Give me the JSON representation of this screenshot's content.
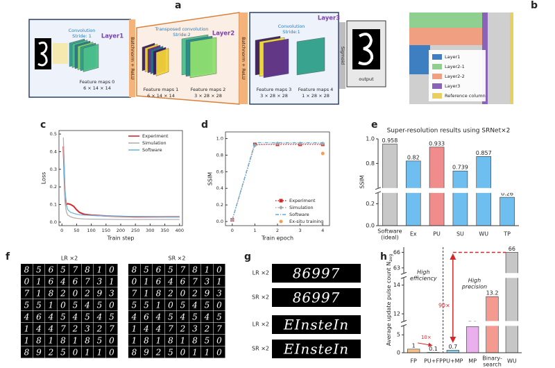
{
  "panel_labels": [
    "a",
    "b",
    "c",
    "d",
    "e",
    "f",
    "g",
    "h"
  ],
  "diagram_a": {
    "layer1": {
      "title": "Layer1",
      "op": "Convolution",
      "stride": "Stride: 1",
      "maps": [
        {
          "name": "Feature maps 0",
          "shape": "6 × 14 × 14"
        }
      ]
    },
    "norm1": "Batchnorm + ReLU",
    "layer2": {
      "title": "Layer2",
      "op": "Transposed convolution",
      "stride": "Stride:2",
      "maps": [
        {
          "name": "Feature maps 1",
          "shape": "6 × 14 × 14"
        },
        {
          "name": "Feature maps 2",
          "shape": "3 × 28 × 28"
        }
      ]
    },
    "norm2": "Batchnorm + ReLU",
    "layer3": {
      "title": "Layer3",
      "op": "Convolution",
      "stride": "Stride:1",
      "maps": [
        {
          "name": "Feature maps 3",
          "shape": "3 × 28 × 28"
        },
        {
          "name": "Feature maps 4",
          "shape": "1 × 28 × 28"
        }
      ]
    },
    "activation": "Sigmoid",
    "output": "output"
  },
  "legend_b": {
    "items": [
      {
        "name": "Layer1",
        "color": "#3d7fc0"
      },
      {
        "name": "Layer2-1",
        "color": "#8fcf8f"
      },
      {
        "name": "Layer2-2",
        "color": "#f0a080"
      },
      {
        "name": "Layer3",
        "color": "#8a62b8"
      },
      {
        "name": "Reference column",
        "color": "#e8d060"
      }
    ]
  },
  "chart_data": [
    {
      "type": "line",
      "xlabel": "Train step",
      "ylabel": "Loss",
      "legend": "upper right",
      "xlim": [
        -10,
        410
      ],
      "xticks": [
        0,
        50,
        100,
        150,
        200,
        250,
        300,
        350,
        400
      ],
      "ylim": [
        -0.02,
        0.52
      ],
      "yticks": [
        {
          "value": 0,
          "label": "0.0"
        },
        {
          "value": 0.1,
          "label": "0.1"
        },
        {
          "value": 0.2,
          "label": "0.2"
        },
        {
          "value": 0.3,
          "label": "0.3"
        },
        {
          "value": 0.4,
          "label": "0.4"
        },
        {
          "value": 0.5,
          "label": "0.5"
        }
      ],
      "x": [
        5,
        10,
        15,
        20,
        30,
        40,
        50,
        60,
        75,
        100,
        150,
        200,
        250,
        300,
        350,
        400
      ],
      "series": [
        {
          "name": "Experiment",
          "color": "#d62728",
          "dash": "solid",
          "marker": "none",
          "values": [
            0.43,
            0.16,
            0.1,
            0.105,
            0.1,
            0.09,
            0.07,
            0.055,
            0.045,
            0.04,
            0.035,
            0.032,
            0.03,
            0.03,
            0.03,
            0.03
          ]
        },
        {
          "name": "Simulation",
          "color": "#b0b0b0",
          "dash": "solid",
          "marker": "none",
          "values": [
            0.48,
            0.12,
            0.06,
            0.04,
            0.03,
            0.025,
            0.022,
            0.02,
            0.018,
            0.017,
            0.016,
            0.015,
            0.015,
            0.015,
            0.015,
            0.015
          ]
        },
        {
          "name": "Software",
          "color": "#6fb7e0",
          "dash": "solid",
          "marker": "none",
          "values": [
            0.4,
            0.2,
            0.1,
            0.07,
            0.055,
            0.05,
            0.045,
            0.042,
            0.04,
            0.038,
            0.035,
            0.033,
            0.032,
            0.031,
            0.03,
            0.03
          ]
        }
      ]
    },
    {
      "type": "line",
      "xlabel": "Train epoch",
      "ylabel": "SSIM",
      "legend": "lower right",
      "xlim": [
        -0.3,
        4.3
      ],
      "xticks": [
        0,
        1,
        2,
        3,
        4
      ],
      "ylim": [
        -0.05,
        1.08
      ],
      "yticks": [
        {
          "value": 0,
          "label": "0.0"
        },
        {
          "value": 0.2,
          "label": "0.2"
        },
        {
          "value": 0.4,
          "label": "0.4"
        },
        {
          "value": 0.6,
          "label": "0.6"
        },
        {
          "value": 0.8,
          "label": "0.8"
        },
        {
          "value": 1,
          "label": "1.0"
        }
      ],
      "x": [
        0,
        1,
        2,
        3,
        4
      ],
      "series": [
        {
          "name": "Experiment",
          "color": "#d62728",
          "dash": "dotted",
          "marker": "square",
          "values": [
            0.02,
            0.93,
            0.93,
            0.93,
            0.93
          ]
        },
        {
          "name": "Simulation",
          "color": "#a8a8a8",
          "dash": "dotted",
          "marker": "diamond",
          "values": [
            0.02,
            0.92,
            0.94,
            0.94,
            0.94
          ]
        },
        {
          "name": "Software",
          "color": "#5aaee0",
          "dash": "dashed",
          "marker": "none",
          "values": [
            0.02,
            0.95,
            0.95,
            0.95,
            0.95
          ]
        },
        {
          "name": "Ex-situ training",
          "color": "#f5a050",
          "dash": "none",
          "marker": "circle",
          "values": [
            null,
            null,
            null,
            null,
            0.82
          ]
        }
      ]
    },
    {
      "type": "broken-bar",
      "title": "Super-resolution results using SRNet×2",
      "ylabel": "SSIM",
      "categories": [
        "Software\n(ideal)",
        "Ex",
        "PU",
        "SU",
        "WU",
        "TP"
      ],
      "values": [
        0.958,
        0.82,
        0.933,
        0.739,
        0.857,
        0.26
      ],
      "colors": [
        "#c8c8c8",
        "#6ebff0",
        "#f08c8c",
        "#6ebff0",
        "#6ebff0",
        "#6ebff0"
      ],
      "ylim": [
        0,
        1.0
      ],
      "y_segments": [
        [
          0,
          0.3
        ],
        [
          0.6,
          1.0
        ]
      ],
      "yticks": [
        {
          "value": 0,
          "label": "0.0"
        },
        {
          "value": 0.2,
          "label": "0.2"
        },
        {
          "value": 0.8,
          "label": "0.8"
        },
        {
          "value": 1,
          "label": "1.0"
        }
      ]
    },
    {
      "type": "broken-bar",
      "ylabel": "Average update pulse count N",
      "ylabel_subscript": "avg",
      "categories": [
        "FP",
        "PU+FP",
        "PU+MP",
        "MP",
        "Binary-\nsearch",
        "WU"
      ],
      "values": [
        1,
        0.1,
        0.7,
        7.3,
        13.2,
        66
      ],
      "colors": [
        "#f6c08a",
        "#f6c08a",
        "#8fd0ec",
        "#eab0ee",
        "#f49a8e",
        "#c6c6c6"
      ],
      "ylim": [
        0,
        67
      ],
      "y_segments": [
        [
          0,
          7.5
        ],
        [
          11.5,
          14.5
        ],
        [
          62,
          67
        ]
      ],
      "yticks": [
        0,
        5,
        12,
        14,
        63,
        66
      ],
      "annotations": {
        "left": "High\nefficiency",
        "right": "High\nprecision",
        "ratio_left": "10×",
        "ratio_right": "90×"
      }
    }
  ],
  "panel_f": {
    "titles": [
      "LR ×2",
      "SR ×2"
    ],
    "digits": [
      [
        8,
        5,
        6,
        5,
        7,
        8,
        1,
        0
      ],
      [
        0,
        1,
        6,
        4,
        6,
        7,
        3,
        1
      ],
      [
        7,
        1,
        8,
        2,
        0,
        2,
        9,
        3
      ],
      [
        5,
        5,
        1,
        0,
        5,
        4,
        5,
        0
      ],
      [
        4,
        6,
        4,
        5,
        4,
        5,
        4,
        5
      ],
      [
        1,
        4,
        4,
        7,
        2,
        3,
        2,
        7
      ],
      [
        1,
        8,
        1,
        8,
        1,
        8,
        5,
        0
      ],
      [
        8,
        9,
        2,
        5,
        0,
        1,
        1,
        0
      ]
    ]
  },
  "panel_g": {
    "rows": [
      {
        "label": "LR ×2",
        "text": "86997"
      },
      {
        "label": "SR ×2",
        "text": "86997"
      },
      {
        "label": "LR ×2",
        "text": "EInsteIn"
      },
      {
        "label": "SR ×2",
        "text": "EInsteIn"
      }
    ]
  }
}
